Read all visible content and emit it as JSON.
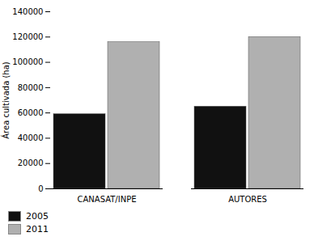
{
  "chart_data": {
    "type": "bar",
    "categories": [
      "CANASAT/INPE",
      "AUTORES"
    ],
    "series": [
      {
        "name": "2005",
        "color": "#111111",
        "values": [
          59000,
          65000
        ]
      },
      {
        "name": "2011",
        "color": "#b0b0b0",
        "values": [
          116000,
          120000
        ]
      }
    ],
    "ylabel": "Área cultivada (ha)",
    "ylim": [
      0,
      140000
    ],
    "yticks": [
      0,
      20000,
      40000,
      60000,
      80000,
      100000,
      120000,
      140000
    ],
    "grid": false,
    "legend": "lower left"
  }
}
